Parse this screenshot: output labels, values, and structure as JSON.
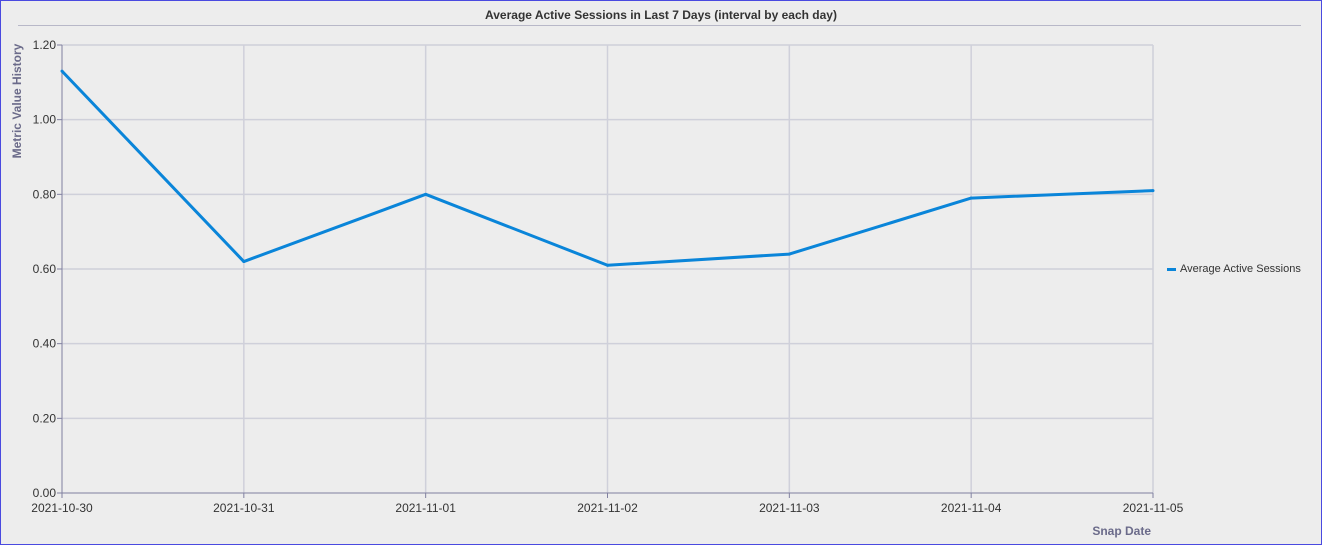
{
  "chart_data": {
    "type": "line",
    "title": "Average Active Sessions in Last 7 Days (interval by each day)",
    "xlabel": "Snap Date",
    "ylabel": "Metric Value History",
    "categories": [
      "2021-10-30",
      "2021-10-31",
      "2021-11-01",
      "2021-11-02",
      "2021-11-03",
      "2021-11-04",
      "2021-11-05"
    ],
    "series": [
      {
        "name": "Average Active Sessions",
        "values": [
          1.13,
          0.62,
          0.8,
          0.61,
          0.64,
          0.79,
          0.81
        ],
        "color": "#0a85d9"
      }
    ],
    "ylim": [
      0,
      1.2
    ],
    "yticks": [
      "0.00",
      "0.20",
      "0.40",
      "0.60",
      "0.80",
      "1.00",
      "1.20"
    ],
    "grid": true,
    "legend_position": "right"
  }
}
